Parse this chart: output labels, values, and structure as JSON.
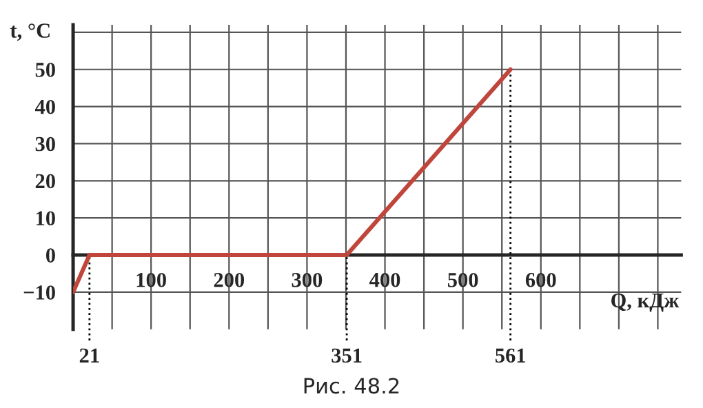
{
  "chart_data": {
    "type": "line",
    "x": [
      0,
      21,
      351,
      561
    ],
    "series": [
      {
        "color": "#c0463c",
        "values": [
          -10,
          0,
          0,
          50
        ]
      }
    ],
    "xlabel": "Q, кДж",
    "ylabel": "t, °C",
    "xlim": [
      0,
      780
    ],
    "ylim": [
      -20,
      62
    ],
    "xticks": [
      {
        "value": 50,
        "label": null
      },
      100,
      {
        "value": 150,
        "label": null
      },
      200,
      {
        "value": 250,
        "label": null
      },
      300,
      {
        "value": 350,
        "label": null
      },
      400,
      {
        "value": 450,
        "label": null
      },
      500,
      {
        "value": 550,
        "label": null
      },
      600,
      {
        "value": 650,
        "label": null
      },
      {
        "value": 700,
        "label": null
      },
      {
        "value": 750,
        "label": null
      }
    ],
    "yticks": [
      -10,
      0,
      10,
      20,
      30,
      40,
      50,
      {
        "value": 60,
        "label": null
      }
    ],
    "grid": true,
    "ref_lines": [
      {
        "axis": "x",
        "value": 21,
        "label": "21",
        "line_style": "dotted"
      },
      {
        "axis": "x",
        "value": 351,
        "label": "351",
        "line_style": "dotted"
      },
      {
        "axis": "x",
        "value": 561,
        "label": "561",
        "line_style": "dotted"
      }
    ],
    "annotations": [
      "Рис. 48.2"
    ]
  }
}
